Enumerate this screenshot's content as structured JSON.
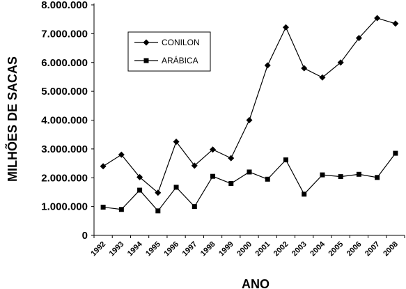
{
  "chart_data": {
    "type": "line",
    "title": "",
    "xlabel": "ANO",
    "ylabel": "MILHÕES DE SACAS",
    "categories": [
      "1992",
      "1993",
      "1994",
      "1995",
      "1996",
      "1997",
      "1998",
      "1999",
      "2000",
      "2001",
      "2002",
      "2003",
      "2004",
      "2005",
      "2006",
      "2007",
      "2008"
    ],
    "ylim": [
      0,
      8000000
    ],
    "yticks": [
      0,
      1000000,
      2000000,
      3000000,
      4000000,
      5000000,
      6000000,
      7000000,
      8000000
    ],
    "ytick_labels": [
      "0",
      "1.000.000",
      "2.000.000",
      "3.000.000",
      "4.000.000",
      "5.000.000",
      "6.000.000",
      "7.000.000",
      "8.000.000"
    ],
    "grid": false,
    "legend_position": "upper-left inside plot",
    "series": [
      {
        "name": "CONILON",
        "marker": "diamond",
        "color": "#000000",
        "values": [
          2400000,
          2800000,
          2020000,
          1480000,
          3250000,
          2420000,
          2980000,
          2680000,
          4000000,
          5900000,
          7220000,
          5800000,
          5480000,
          6000000,
          6850000,
          7540000,
          7350000
        ]
      },
      {
        "name": "ARÁBICA",
        "marker": "square",
        "color": "#000000",
        "values": [
          980000,
          900000,
          1570000,
          850000,
          1670000,
          1000000,
          2050000,
          1800000,
          2200000,
          1950000,
          2620000,
          1430000,
          2100000,
          2040000,
          2120000,
          2010000,
          2850000
        ]
      }
    ]
  }
}
